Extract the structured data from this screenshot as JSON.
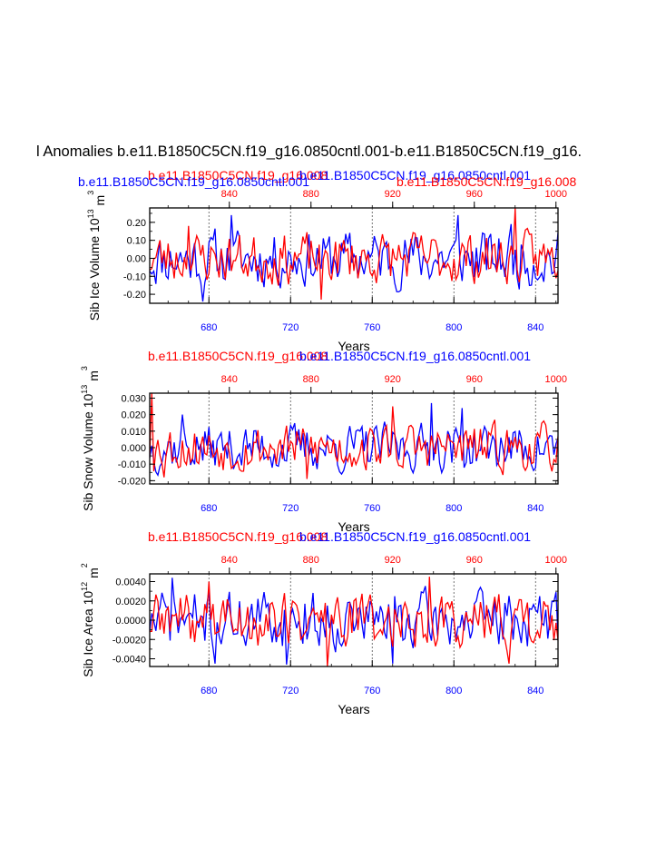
{
  "main_title": "l Anomalies b.e11.B1850C5CN.f19_g16.0850cntl.001-b.e11.B1850C5CN.f19_g16.",
  "colors": {
    "blue": "#0000ff",
    "red": "#ff0000",
    "black": "#000000",
    "grid": "#555555"
  },
  "chart_data": [
    {
      "type": "line",
      "id": "ice-volume",
      "ylabel_main": "Sib Ice Volume 10",
      "ylabel_exp": "13",
      "ylabel_unit": " m",
      "ylabel_unit_exp": "3",
      "xlabel": "Years",
      "legend_red": "b.e11.B1850C5CN.f19_g16.008",
      "legend_blue": "b.e11.B1850C5CN.f19_g16.0850cntl.001",
      "legend_red_top": "b.e11.B1850C5CN.f19_g16.008",
      "legend_blue_top": "b.e11.B1850C5CN.f19_g16.0850cntl.001",
      "legend_blue_left": "b.e11.B1850C5CN.f19_g16.0850cntl.001",
      "legend_red_right": "b.e11.B1850C5CN.f19_g16.008",
      "ylim": [
        -0.25,
        0.28
      ],
      "yticks": [
        -0.2,
        -0.1,
        0.0,
        0.1,
        0.2
      ],
      "ytick_labels": [
        "-0.20",
        "-0.10",
        "0.00",
        "0.10",
        "0.20"
      ],
      "bottom_xlim": [
        651,
        851
      ],
      "bottom_xticks": [
        "680",
        "720",
        "760",
        "800",
        "840"
      ],
      "top_xlim": [
        801,
        1001
      ],
      "top_xticks": [
        "840",
        "880",
        "920",
        "960",
        "1000"
      ],
      "series": [
        {
          "name": "b.e11.B1850C5CN.f19_g16.0850cntl.001",
          "axis": "bottom",
          "amplitude": 0.12,
          "seed": 11,
          "highlights": [
            [
              691,
              0.24
            ],
            [
              677,
              -0.24
            ],
            [
              802,
              0.24
            ],
            [
              828,
              0.19
            ]
          ]
        },
        {
          "name": "b.e11.B1850C5CN.f19_g16.008",
          "axis": "top",
          "amplitude": 0.11,
          "seed": 23,
          "highlights": [
            [
              980,
              0.28
            ],
            [
              885,
              -0.23
            ],
            [
              820,
              0.18
            ]
          ]
        }
      ]
    },
    {
      "type": "line",
      "id": "snow-volume",
      "ylabel_main": "Sib Snow Volume 10",
      "ylabel_exp": "13",
      "ylabel_unit": " m",
      "ylabel_unit_exp": "3",
      "xlabel": "Years",
      "legend_red": "b.e11.B1850C5CN.f19_g16.008",
      "legend_blue": "b.e11.B1850C5CN.f19_g16.0850cntl.001",
      "ylim": [
        -0.022,
        0.033
      ],
      "yticks": [
        -0.02,
        -0.01,
        0.0,
        0.01,
        0.02,
        0.03
      ],
      "ytick_labels": [
        "-0.020",
        "-0.010",
        "0.000",
        "0.010",
        "0.020",
        "0.030"
      ],
      "bottom_xlim": [
        651,
        851
      ],
      "bottom_xticks": [
        "680",
        "720",
        "760",
        "800",
        "840"
      ],
      "top_xlim": [
        801,
        1001
      ],
      "top_xticks": [
        "840",
        "880",
        "920",
        "960",
        "1000"
      ],
      "series": [
        {
          "name": "b.e11.B1850C5CN.f19_g16.0850cntl.001",
          "axis": "bottom",
          "amplitude": 0.011,
          "seed": 37,
          "highlights": [
            [
              667,
              0.02
            ],
            [
              789,
              0.027
            ],
            [
              804,
              0.024
            ],
            [
              745,
              -0.016
            ]
          ]
        },
        {
          "name": "b.e11.B1850C5CN.f19_g16.008",
          "axis": "top",
          "amplitude": 0.011,
          "seed": 53,
          "highlights": [
            [
              802,
              0.033
            ],
            [
              808,
              -0.018
            ],
            [
              878,
              -0.019
            ],
            [
              920,
              0.025
            ]
          ]
        }
      ]
    },
    {
      "type": "line",
      "id": "ice-area",
      "ylabel_main": "Sib Ice Area 10",
      "ylabel_exp": "12",
      "ylabel_unit": " m",
      "ylabel_unit_exp": "2",
      "xlabel": "Years",
      "legend_red": "b.e11.B1850C5CN.f19_g16.008",
      "legend_blue": "b.e11.B1850C5CN.f19_g16.0850cntl.001",
      "ylim": [
        -0.0048,
        0.0048
      ],
      "yticks": [
        -0.004,
        -0.002,
        0.0,
        0.002,
        0.004
      ],
      "ytick_labels": [
        "-0.0040",
        "-0.0020",
        "0.0000",
        "0.0020",
        "0.0040"
      ],
      "bottom_xlim": [
        651,
        851
      ],
      "bottom_xticks": [
        "680",
        "720",
        "760",
        "800",
        "840"
      ],
      "top_xlim": [
        801,
        1001
      ],
      "top_xticks": [
        "840",
        "880",
        "920",
        "960",
        "1000"
      ],
      "series": [
        {
          "name": "b.e11.B1850C5CN.f19_g16.0850cntl.001",
          "axis": "bottom",
          "amplitude": 0.0023,
          "seed": 71,
          "highlights": [
            [
              662,
              0.0044
            ],
            [
              683,
              -0.0045
            ],
            [
              718,
              -0.0046
            ],
            [
              770,
              -0.0045
            ]
          ]
        },
        {
          "name": "b.e11.B1850C5CN.f19_g16.008",
          "axis": "top",
          "amplitude": 0.0022,
          "seed": 89,
          "highlights": [
            [
              830,
              0.004
            ],
            [
              888,
              -0.0048
            ],
            [
              938,
              0.0045
            ],
            [
              977,
              -0.0045
            ]
          ]
        }
      ]
    }
  ]
}
